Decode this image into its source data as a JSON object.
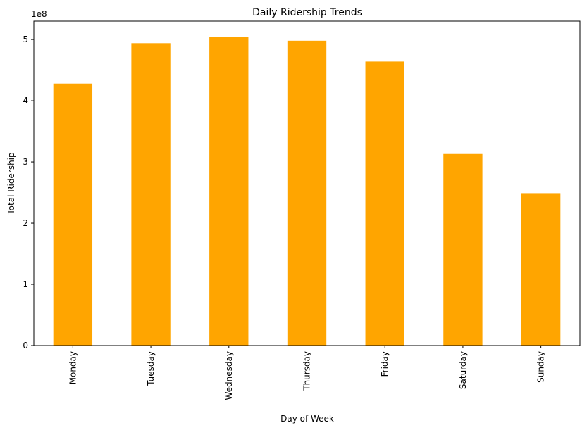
{
  "chart_data": {
    "type": "bar",
    "title": "Daily Ridership Trends",
    "xlabel": "Day of Week",
    "ylabel": "Total Ridership",
    "offset_label": "1e8",
    "categories": [
      "Monday",
      "Tuesday",
      "Wednesday",
      "Thursday",
      "Friday",
      "Saturday",
      "Sunday"
    ],
    "values": [
      428000000,
      494000000,
      504000000,
      498000000,
      464000000,
      313000000,
      249000000
    ],
    "ylim": [
      0,
      530000000
    ],
    "yticks": [
      0,
      100000000,
      200000000,
      300000000,
      400000000,
      500000000
    ],
    "ytick_labels": [
      "0",
      "1",
      "2",
      "3",
      "4",
      "5"
    ],
    "bar_color": "#FFA500",
    "grid": false,
    "legend": false
  }
}
